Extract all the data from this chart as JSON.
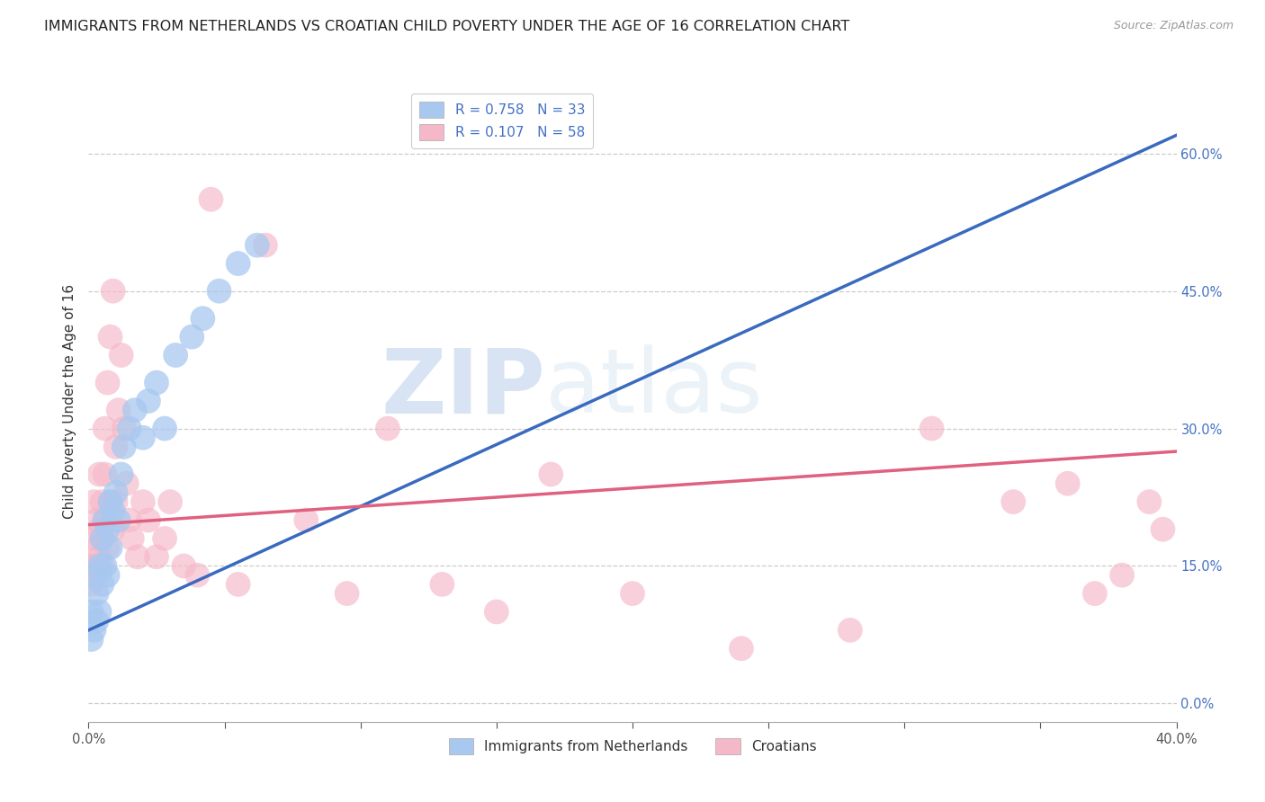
{
  "title": "IMMIGRANTS FROM NETHERLANDS VS CROATIAN CHILD POVERTY UNDER THE AGE OF 16 CORRELATION CHART",
  "source": "Source: ZipAtlas.com",
  "ylabel": "Child Poverty Under the Age of 16",
  "right_yticks": [
    0.0,
    0.15,
    0.3,
    0.45,
    0.6
  ],
  "right_yticklabels": [
    "0.0%",
    "15.0%",
    "30.0%",
    "45.0%",
    "60.0%"
  ],
  "xlim": [
    0.0,
    0.4
  ],
  "ylim": [
    -0.02,
    0.68
  ],
  "legend_r1": "R = 0.758",
  "legend_n1": "N = 33",
  "legend_r2": "R = 0.107",
  "legend_n2": "N = 58",
  "color_blue": "#a8c8f0",
  "color_pink": "#f5b8c8",
  "color_blue_line": "#3a6abf",
  "color_pink_line": "#e06080",
  "blue_scatter_x": [
    0.001,
    0.001,
    0.002,
    0.002,
    0.003,
    0.003,
    0.004,
    0.004,
    0.005,
    0.005,
    0.006,
    0.006,
    0.007,
    0.007,
    0.008,
    0.008,
    0.009,
    0.01,
    0.011,
    0.012,
    0.013,
    0.015,
    0.017,
    0.02,
    0.022,
    0.025,
    0.028,
    0.032,
    0.038,
    0.042,
    0.048,
    0.055,
    0.062
  ],
  "blue_scatter_y": [
    0.1,
    0.07,
    0.14,
    0.08,
    0.12,
    0.09,
    0.15,
    0.1,
    0.18,
    0.13,
    0.2,
    0.15,
    0.19,
    0.14,
    0.22,
    0.17,
    0.21,
    0.23,
    0.2,
    0.25,
    0.28,
    0.3,
    0.32,
    0.29,
    0.33,
    0.35,
    0.3,
    0.38,
    0.4,
    0.42,
    0.45,
    0.48,
    0.5
  ],
  "pink_scatter_x": [
    0.001,
    0.001,
    0.002,
    0.002,
    0.002,
    0.003,
    0.003,
    0.003,
    0.004,
    0.004,
    0.004,
    0.005,
    0.005,
    0.005,
    0.006,
    0.006,
    0.006,
    0.007,
    0.007,
    0.008,
    0.008,
    0.009,
    0.009,
    0.01,
    0.01,
    0.011,
    0.012,
    0.013,
    0.014,
    0.015,
    0.016,
    0.018,
    0.02,
    0.022,
    0.025,
    0.028,
    0.03,
    0.035,
    0.04,
    0.045,
    0.055,
    0.065,
    0.08,
    0.095,
    0.11,
    0.13,
    0.15,
    0.17,
    0.2,
    0.24,
    0.28,
    0.31,
    0.34,
    0.36,
    0.37,
    0.38,
    0.39,
    0.395
  ],
  "pink_scatter_y": [
    0.15,
    0.13,
    0.18,
    0.15,
    0.22,
    0.2,
    0.17,
    0.14,
    0.25,
    0.19,
    0.16,
    0.22,
    0.18,
    0.15,
    0.3,
    0.25,
    0.2,
    0.35,
    0.17,
    0.4,
    0.22,
    0.45,
    0.19,
    0.28,
    0.22,
    0.32,
    0.38,
    0.3,
    0.24,
    0.2,
    0.18,
    0.16,
    0.22,
    0.2,
    0.16,
    0.18,
    0.22,
    0.15,
    0.14,
    0.55,
    0.13,
    0.5,
    0.2,
    0.12,
    0.3,
    0.13,
    0.1,
    0.25,
    0.12,
    0.06,
    0.08,
    0.3,
    0.22,
    0.24,
    0.12,
    0.14,
    0.22,
    0.19
  ],
  "watermark_zip": "ZIP",
  "watermark_atlas": "atlas",
  "title_fontsize": 11.5,
  "axis_label_fontsize": 11,
  "tick_fontsize": 10.5
}
